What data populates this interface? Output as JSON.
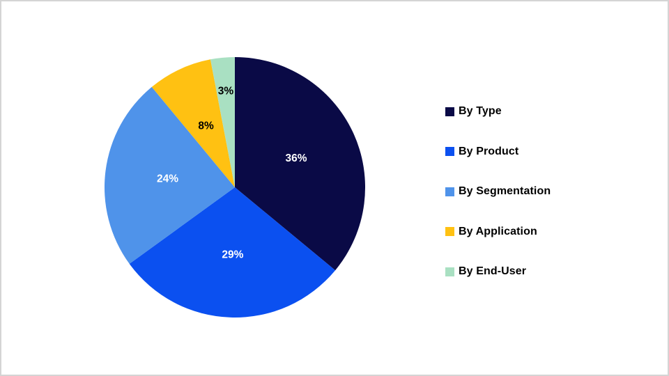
{
  "frame": {
    "background_color": "#ffffff",
    "border_color": "#d4d4d4"
  },
  "chart_data": {
    "type": "pie",
    "title": "",
    "start_angle_deg": 0,
    "direction": "clockwise",
    "legend_position": "right",
    "slices": [
      {
        "label": "By Type",
        "value": 36,
        "display": "36%",
        "color": "#0A0A46",
        "label_color": "#FFFFFF"
      },
      {
        "label": "By Product",
        "value": 29,
        "display": "29%",
        "color": "#0B50F0",
        "label_color": "#FFFFFF"
      },
      {
        "label": "By Segmentation",
        "value": 24,
        "display": "24%",
        "color": "#4F93EA",
        "label_color": "#FFFFFF"
      },
      {
        "label": "By Application",
        "value": 8,
        "display": "8%",
        "color": "#FFC112",
        "label_color": "#000000"
      },
      {
        "label": "By End-User",
        "value": 3,
        "display": "3%",
        "color": "#A9E0C2",
        "label_color": "#000000"
      }
    ]
  }
}
